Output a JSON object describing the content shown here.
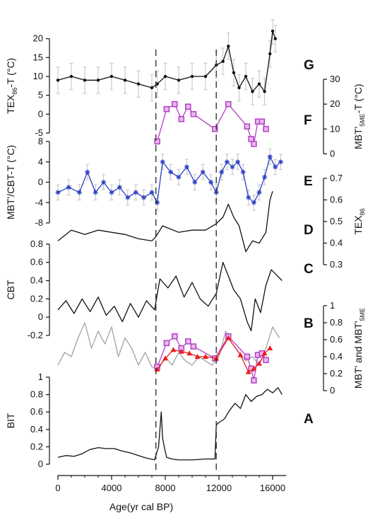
{
  "chart_data": {
    "type": "line",
    "xlabel": "Age(yr cal BP)",
    "x_ticks": [
      0,
      4000,
      8000,
      12000,
      16000
    ],
    "xlim": [
      0,
      17000
    ],
    "event_lines": [
      7300,
      11800
    ],
    "colors": {
      "black": "#111111",
      "grey": "#a8a8a8",
      "errorbar": "#c2c2c2",
      "blue": "#2b3fc4",
      "magenta": "#b340c4",
      "red": "#ee1c1c"
    },
    "panels": [
      {
        "letter": "G",
        "ylabel": "TEX86-T (°C)",
        "y_axis": "left",
        "ylim": [
          -5,
          25
        ],
        "y_ticks": [
          -5,
          0,
          5,
          10,
          15,
          20
        ],
        "series": [
          {
            "style": "black-dot-errorbar",
            "x": [
              0,
              1000,
              2000,
              3000,
              4000,
              5000,
              6000,
              7000,
              7400,
              8000,
              9000,
              10000,
              11000,
              11800,
              12300,
              12700,
              13100,
              13500,
              14000,
              14500,
              15000,
              15400,
              15800,
              16000,
              16200
            ],
            "y": [
              9,
              10,
              9,
              9,
              10,
              9,
              8,
              7,
              8,
              10,
              9,
              10,
              10,
              13,
              14,
              18,
              11,
              7,
              10,
              6,
              8,
              6,
              16,
              22,
              20
            ],
            "err": 3.5
          }
        ]
      },
      {
        "letter": "F",
        "ylabel": "MBT'5ME-T (°C)",
        "y_axis": "right",
        "ylim": [
          -3,
          30
        ],
        "y_ticks": [
          0,
          10,
          20,
          30
        ],
        "series": [
          {
            "style": "magenta-square",
            "x": [
              7400,
              8100,
              8700,
              9200,
              9700,
              10100,
              11700,
              12700,
              14100,
              14400,
              14600,
              14900,
              15200,
              15500
            ],
            "y": [
              5,
              18,
              20,
              14,
              19,
              16,
              10,
              20,
              11,
              6,
              4,
              13,
              13,
              10
            ]
          }
        ]
      },
      {
        "letter": "E",
        "ylabel": "MBT'/CBT-T (°C)",
        "y_axis": "left",
        "ylim": [
          -8,
          8
        ],
        "y_ticks": [
          -8,
          -4,
          0,
          4,
          8
        ],
        "series": [
          {
            "style": "blue-star-errorbar",
            "x": [
              0,
              800,
              1600,
              2200,
              2800,
              3400,
              4000,
              4600,
              5200,
              5800,
              6400,
              7000,
              7400,
              7800,
              8400,
              9000,
              9600,
              10200,
              10800,
              11400,
              11800,
              12200,
              12600,
              13000,
              13400,
              13800,
              14200,
              14600,
              15000,
              15400,
              15800,
              16200,
              16600
            ],
            "y": [
              -2,
              -1,
              -2,
              2,
              -2,
              0,
              -2,
              -1,
              -3,
              -2,
              -3,
              -2,
              -4,
              4,
              2,
              1,
              3,
              0,
              2,
              0,
              -2,
              2,
              4,
              3,
              4,
              2,
              -3,
              -4,
              -2,
              1,
              5,
              3,
              4
            ],
            "err": 1.5
          }
        ]
      },
      {
        "letter": "D",
        "ylabel": "TEX86",
        "y_axis": "right",
        "ylim": [
          0.3,
          0.7
        ],
        "y_ticks": [
          0.3,
          0.4,
          0.5,
          0.6,
          0.7
        ],
        "series": [
          {
            "style": "black-dot",
            "x": [
              0,
              1000,
              2000,
              3000,
              4000,
              5000,
              6000,
              7000,
              7300,
              7800,
              9000,
              10000,
              11000,
              11800,
              12300,
              12700,
              13100,
              13500,
              14000,
              14500,
              15000,
              15500,
              15800,
              16000
            ],
            "y": [
              0.41,
              0.46,
              0.44,
              0.46,
              0.45,
              0.44,
              0.42,
              0.41,
              0.43,
              0.48,
              0.45,
              0.46,
              0.46,
              0.49,
              0.52,
              0.58,
              0.52,
              0.48,
              0.36,
              0.41,
              0.4,
              0.45,
              0.6,
              0.64
            ]
          }
        ]
      },
      {
        "letter": "C",
        "ylabel": "CBT",
        "y_axis": "left",
        "ylim": [
          -0.2,
          0.9
        ],
        "y_ticks": [
          -0.2,
          0,
          0.2,
          0.4,
          0.6,
          0.8
        ],
        "series": [
          {
            "style": "black-dot",
            "x": [
              0,
              600,
              1200,
              1800,
              2400,
              3000,
              3600,
              4200,
              4800,
              5400,
              6000,
              6600,
              7200,
              7600,
              8200,
              8800,
              9400,
              10000,
              10600,
              11200,
              11800,
              12300,
              12700,
              13100,
              13600,
              14100,
              14400,
              14700,
              15100,
              15500,
              15900,
              16300,
              16700
            ],
            "y": [
              0.08,
              0.18,
              0.04,
              0.2,
              0.06,
              0.22,
              0.02,
              0.12,
              -0.05,
              0.15,
              0.0,
              0.18,
              0.08,
              0.42,
              0.32,
              0.45,
              0.22,
              0.38,
              0.2,
              0.12,
              0.26,
              0.6,
              0.45,
              0.3,
              0.2,
              -0.05,
              -0.15,
              0.2,
              0.05,
              0.35,
              0.52,
              0.46,
              0.4
            ]
          }
        ]
      },
      {
        "letter": "B",
        "ylabel": "MBT' and MBT'5ME",
        "y_axis": "right",
        "ylim": [
          0,
          1
        ],
        "y_ticks": [
          0,
          0.2,
          0.4,
          0.6,
          0.8,
          1
        ],
        "series": [
          {
            "style": "grey-line",
            "x": [
              0,
              500,
              1000,
              1500,
              2000,
              2500,
              3000,
              3500,
              4000,
              4500,
              5000,
              5500,
              6000,
              6500,
              7000,
              7500,
              8000,
              8500,
              9000,
              9500,
              10000,
              10500,
              11000,
              11500,
              12000,
              12500,
              13000,
              13500,
              14000,
              14500,
              15000,
              15500,
              16000,
              16500
            ],
            "y": [
              0.3,
              0.45,
              0.4,
              0.62,
              0.8,
              0.5,
              0.7,
              0.55,
              0.75,
              0.4,
              0.62,
              0.5,
              0.3,
              0.45,
              0.28,
              0.25,
              0.4,
              0.3,
              0.45,
              0.35,
              0.3,
              0.4,
              0.35,
              0.3,
              0.4,
              0.7,
              0.55,
              0.45,
              0.35,
              0.4,
              0.3,
              0.5,
              0.75,
              0.62
            ]
          },
          {
            "style": "magenta-square",
            "x": [
              7400,
              8100,
              8700,
              9200,
              9700,
              10100,
              11700,
              12700,
              14100,
              14400,
              14600,
              14900,
              15200,
              15500
            ],
            "y": [
              0.28,
              0.56,
              0.64,
              0.5,
              0.58,
              0.52,
              0.38,
              0.64,
              0.4,
              0.26,
              0.12,
              0.42,
              0.44,
              0.36
            ]
          },
          {
            "style": "red-triangle",
            "x": [
              7400,
              8000,
              8600,
              9200,
              9800,
              10400,
              11000,
              11800,
              12700,
              13600,
              14200,
              14600,
              15000,
              15400,
              15800
            ],
            "y": [
              0.25,
              0.38,
              0.48,
              0.46,
              0.44,
              0.4,
              0.4,
              0.38,
              0.62,
              0.42,
              0.22,
              0.26,
              0.32,
              0.44,
              0.5
            ]
          }
        ]
      },
      {
        "letter": "A",
        "ylabel": "BIT",
        "y_axis": "left",
        "ylim": [
          0,
          1
        ],
        "y_ticks": [
          0,
          0.2,
          0.4,
          0.6,
          0.8,
          1
        ],
        "series": [
          {
            "style": "black-line",
            "x": [
              0,
              600,
              1200,
              1800,
              2400,
              3000,
              3600,
              4200,
              4800,
              5400,
              6000,
              6600,
              7200,
              7500,
              7700,
              7800,
              7950,
              8100,
              8500,
              9000,
              10000,
              11000,
              11700,
              11800,
              12000,
              12400,
              12800,
              13200,
              13600,
              14000,
              14400,
              14800,
              15200,
              15600,
              16000,
              16400,
              16700
            ],
            "y": [
              0.08,
              0.1,
              0.09,
              0.12,
              0.17,
              0.19,
              0.18,
              0.18,
              0.15,
              0.13,
              0.1,
              0.07,
              0.05,
              0.2,
              0.6,
              0.3,
              0.18,
              0.08,
              0.06,
              0.05,
              0.05,
              0.06,
              0.06,
              0.45,
              0.48,
              0.52,
              0.62,
              0.7,
              0.64,
              0.8,
              0.72,
              0.78,
              0.8,
              0.86,
              0.82,
              0.88,
              0.8
            ]
          }
        ]
      }
    ]
  }
}
